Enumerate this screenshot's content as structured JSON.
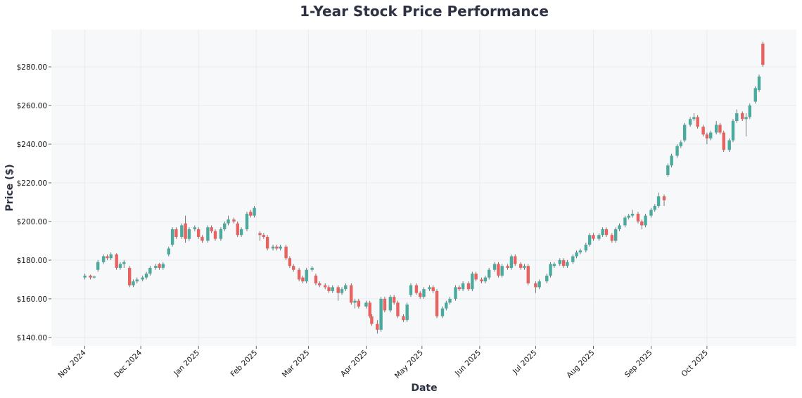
{
  "chart_data": {
    "type": "candlestick",
    "title": "1-Year Stock Price Performance",
    "xlabel": "Date",
    "ylabel": "Price ($)",
    "ylim": [
      135.6,
      299.3
    ],
    "xlim": [
      "2024-10-14",
      "2025-11-18"
    ],
    "grid": true,
    "colors": {
      "up": "#4aaa9e",
      "down": "#e8625f",
      "plot_bg": "#f7f8fa",
      "grid": "#e6e8ec",
      "title": "#2d3142"
    },
    "y_ticks": [
      140,
      160,
      180,
      200,
      220,
      240,
      260,
      280
    ],
    "y_tick_labels": [
      "$140.00",
      "$160.00",
      "$180.00",
      "$200.00",
      "$220.00",
      "$240.00",
      "$260.00",
      "$280.00"
    ],
    "x_ticks": [
      "2024-11-01",
      "2024-12-01",
      "2025-01-01",
      "2025-02-01",
      "2025-03-01",
      "2025-04-01",
      "2025-05-01",
      "2025-06-01",
      "2025-07-01",
      "2025-08-01",
      "2025-09-01",
      "2025-10-01"
    ],
    "x_tick_labels": [
      "Nov 2024",
      "Dec 2024",
      "Jan 2025",
      "Feb 2025",
      "Mar 2025",
      "Apr 2025",
      "May 2025",
      "Jun 2025",
      "Jul 2025",
      "Aug 2025",
      "Sep 2025",
      "Oct 2025"
    ],
    "ohlc_columns": [
      "date",
      "open",
      "high",
      "low",
      "close"
    ],
    "ohlc": [
      [
        "2024-11-01",
        171,
        173,
        170,
        172
      ],
      [
        "2024-11-04",
        172,
        172.5,
        170,
        171
      ],
      [
        "2024-11-06",
        171,
        172,
        170.5,
        171.5
      ],
      [
        "2024-11-08",
        175,
        180,
        174,
        179
      ],
      [
        "2024-11-11",
        179,
        183,
        178,
        182
      ],
      [
        "2024-11-13",
        182,
        183,
        180,
        181
      ],
      [
        "2024-11-15",
        181,
        184,
        180,
        183
      ],
      [
        "2024-11-18",
        183,
        183.5,
        175,
        176
      ],
      [
        "2024-11-20",
        176,
        179,
        175,
        178
      ],
      [
        "2024-11-22",
        178,
        180,
        176,
        179
      ],
      [
        "2024-11-25",
        176,
        177,
        166,
        167
      ],
      [
        "2024-11-27",
        167,
        170,
        166,
        169
      ],
      [
        "2024-11-29",
        169,
        171,
        168,
        170
      ],
      [
        "2024-12-02",
        170,
        172,
        169,
        171
      ],
      [
        "2024-12-04",
        171,
        174,
        170,
        173
      ],
      [
        "2024-12-06",
        173,
        177,
        172,
        176
      ],
      [
        "2024-12-09",
        176,
        178,
        175,
        177
      ],
      [
        "2024-12-11",
        178,
        178.5,
        175,
        176
      ],
      [
        "2024-12-13",
        176,
        179,
        175,
        178
      ],
      [
        "2024-12-16",
        183,
        187,
        182,
        186
      ],
      [
        "2024-12-18",
        188,
        197,
        187,
        196
      ],
      [
        "2024-12-20",
        196,
        197,
        191,
        192
      ],
      [
        "2024-12-23",
        192,
        199,
        191,
        198
      ],
      [
        "2024-12-25",
        199,
        203,
        189,
        191
      ],
      [
        "2024-12-27",
        191,
        197,
        190,
        196
      ],
      [
        "2024-12-30",
        196,
        198,
        195,
        197
      ],
      [
        "2025-01-01",
        196,
        197,
        191,
        192
      ],
      [
        "2025-01-03",
        192,
        193,
        189,
        190
      ],
      [
        "2025-01-06",
        190,
        198,
        189,
        197
      ],
      [
        "2025-01-08",
        197,
        198,
        194,
        195
      ],
      [
        "2025-01-10",
        195,
        196,
        190,
        191
      ],
      [
        "2025-01-13",
        191,
        197,
        190,
        196
      ],
      [
        "2025-01-15",
        196,
        200,
        195,
        199
      ],
      [
        "2025-01-17",
        199,
        203,
        198,
        201
      ],
      [
        "2025-01-20",
        201,
        202,
        199,
        200
      ],
      [
        "2025-01-22",
        199,
        200,
        192,
        193
      ],
      [
        "2025-01-24",
        193,
        197,
        192,
        196
      ],
      [
        "2025-01-27",
        196,
        205,
        195,
        204
      ],
      [
        "2025-01-29",
        205,
        206,
        202,
        203
      ],
      [
        "2025-01-31",
        203,
        208,
        202,
        207
      ],
      [
        "2025-02-03",
        194,
        195,
        190,
        193
      ],
      [
        "2025-02-05",
        193,
        194,
        191,
        192
      ],
      [
        "2025-02-07",
        192,
        193,
        185,
        186
      ],
      [
        "2025-02-10",
        186,
        188,
        185,
        187
      ],
      [
        "2025-02-12",
        187,
        188,
        185,
        186
      ],
      [
        "2025-02-14",
        186,
        188,
        185,
        187
      ],
      [
        "2025-02-17",
        187,
        188,
        180,
        181
      ],
      [
        "2025-02-19",
        181,
        182,
        176,
        177
      ],
      [
        "2025-02-21",
        177,
        178,
        174,
        175
      ],
      [
        "2025-02-24",
        175,
        176,
        169,
        170
      ],
      [
        "2025-02-26",
        171,
        172,
        168,
        169
      ],
      [
        "2025-02-28",
        169,
        176,
        168,
        175
      ],
      [
        "2025-03-03",
        175,
        177,
        174,
        176
      ],
      [
        "2025-03-05",
        172,
        173,
        167,
        168
      ],
      [
        "2025-03-07",
        168,
        169,
        166,
        167
      ],
      [
        "2025-03-10",
        167,
        168,
        165,
        166
      ],
      [
        "2025-03-12",
        166,
        167,
        163,
        164
      ],
      [
        "2025-03-14",
        164,
        167,
        163,
        166
      ],
      [
        "2025-03-17",
        166,
        167,
        159,
        163
      ],
      [
        "2025-03-19",
        163,
        166,
        162,
        165
      ],
      [
        "2025-03-21",
        165,
        168,
        164,
        167
      ],
      [
        "2025-03-24",
        167,
        168,
        157,
        158
      ],
      [
        "2025-03-26",
        158,
        160,
        155,
        159
      ],
      [
        "2025-03-28",
        159,
        160,
        155,
        156
      ],
      [
        "2025-04-01",
        156,
        159,
        155,
        158
      ],
      [
        "2025-04-03",
        158,
        159,
        150,
        151
      ],
      [
        "2025-04-04",
        151,
        152,
        146,
        147
      ],
      [
        "2025-04-07",
        147,
        149,
        142,
        144
      ],
      [
        "2025-04-09",
        144,
        161,
        143,
        160
      ],
      [
        "2025-04-11",
        160,
        161,
        153,
        154
      ],
      [
        "2025-04-14",
        154,
        162,
        153,
        161
      ],
      [
        "2025-04-16",
        161,
        162,
        157,
        158
      ],
      [
        "2025-04-18",
        158,
        159,
        150,
        151
      ],
      [
        "2025-04-21",
        151,
        152,
        148,
        149
      ],
      [
        "2025-04-23",
        149,
        158,
        148,
        157
      ],
      [
        "2025-04-25",
        162,
        168,
        161,
        167
      ],
      [
        "2025-04-28",
        167,
        168,
        162,
        163
      ],
      [
        "2025-04-30",
        163,
        164,
        160,
        161
      ],
      [
        "2025-05-02",
        161,
        166,
        160,
        165
      ],
      [
        "2025-05-05",
        165,
        167,
        164,
        166
      ],
      [
        "2025-05-07",
        166,
        167,
        163,
        164
      ],
      [
        "2025-05-09",
        164,
        165,
        150,
        151
      ],
      [
        "2025-05-12",
        151,
        156,
        150,
        155
      ],
      [
        "2025-05-14",
        155,
        159,
        154,
        158
      ],
      [
        "2025-05-16",
        158,
        161,
        157,
        160
      ],
      [
        "2025-05-19",
        160,
        167,
        159,
        166
      ],
      [
        "2025-05-21",
        166,
        167,
        164,
        165
      ],
      [
        "2025-05-23",
        165,
        169,
        164,
        168
      ],
      [
        "2025-05-26",
        168,
        169,
        164,
        165
      ],
      [
        "2025-05-28",
        165,
        174,
        164,
        173
      ],
      [
        "2025-05-30",
        173,
        174,
        169,
        170
      ],
      [
        "2025-06-02",
        170,
        171,
        168,
        169
      ],
      [
        "2025-06-04",
        169,
        172,
        168,
        171
      ],
      [
        "2025-06-06",
        171,
        176,
        170,
        175
      ],
      [
        "2025-06-09",
        175,
        179,
        174,
        178
      ],
      [
        "2025-06-11",
        178,
        179,
        171,
        172
      ],
      [
        "2025-06-13",
        172,
        178,
        171,
        177
      ],
      [
        "2025-06-16",
        177,
        178,
        175,
        176
      ],
      [
        "2025-06-18",
        176,
        183,
        175,
        182
      ],
      [
        "2025-06-20",
        182,
        183,
        177,
        178
      ],
      [
        "2025-06-23",
        178,
        179,
        175,
        176
      ],
      [
        "2025-06-25",
        176,
        178,
        175,
        177
      ],
      [
        "2025-06-27",
        177,
        178,
        167,
        168
      ],
      [
        "2025-07-01",
        168,
        169,
        163,
        166
      ],
      [
        "2025-07-03",
        166,
        170,
        165,
        169
      ],
      [
        "2025-07-07",
        169,
        173,
        168,
        172
      ],
      [
        "2025-07-09",
        172,
        179,
        171,
        178
      ],
      [
        "2025-07-11",
        177,
        179,
        176,
        178
      ],
      [
        "2025-07-14",
        178,
        181,
        177,
        180
      ],
      [
        "2025-07-16",
        180,
        181,
        176,
        177
      ],
      [
        "2025-07-18",
        177,
        180,
        176,
        179
      ],
      [
        "2025-07-21",
        179,
        183,
        178,
        182
      ],
      [
        "2025-07-23",
        182,
        185,
        181,
        184
      ],
      [
        "2025-07-25",
        184,
        186,
        183,
        185
      ],
      [
        "2025-07-28",
        185,
        189,
        184,
        188
      ],
      [
        "2025-07-30",
        188,
        194,
        187,
        193
      ],
      [
        "2025-08-01",
        193,
        194,
        190,
        191
      ],
      [
        "2025-08-04",
        191,
        194,
        190,
        193
      ],
      [
        "2025-08-06",
        193,
        197,
        192,
        196
      ],
      [
        "2025-08-08",
        196,
        197,
        192,
        193
      ],
      [
        "2025-08-11",
        193,
        194,
        189,
        190
      ],
      [
        "2025-08-13",
        190,
        197,
        189,
        196
      ],
      [
        "2025-08-15",
        196,
        199,
        195,
        198
      ],
      [
        "2025-08-18",
        198,
        203,
        197,
        202
      ],
      [
        "2025-08-20",
        202,
        204,
        201,
        203
      ],
      [
        "2025-08-22",
        203,
        206,
        202,
        204
      ],
      [
        "2025-08-25",
        204,
        205,
        199,
        200
      ],
      [
        "2025-08-27",
        200,
        201,
        196,
        198
      ],
      [
        "2025-08-29",
        198,
        204,
        197,
        203
      ],
      [
        "2025-09-01",
        203,
        207,
        202,
        206
      ],
      [
        "2025-09-03",
        206,
        209,
        205,
        208
      ],
      [
        "2025-09-05",
        208,
        215,
        207,
        213
      ],
      [
        "2025-09-08",
        213,
        214,
        208,
        211
      ],
      [
        "2025-09-10",
        224,
        230,
        223,
        229
      ],
      [
        "2025-09-12",
        229,
        235,
        228,
        234
      ],
      [
        "2025-09-15",
        234,
        240,
        233,
        239
      ],
      [
        "2025-09-17",
        239,
        242,
        238,
        241
      ],
      [
        "2025-09-19",
        242,
        251,
        241,
        250
      ],
      [
        "2025-09-22",
        250,
        254,
        249,
        253
      ],
      [
        "2025-09-24",
        253,
        256,
        252,
        254
      ],
      [
        "2025-09-26",
        254,
        255,
        248,
        249
      ],
      [
        "2025-09-29",
        249,
        250,
        244,
        245
      ],
      [
        "2025-10-01",
        245,
        246,
        240,
        243
      ],
      [
        "2025-10-03",
        243,
        247,
        242,
        246
      ],
      [
        "2025-10-06",
        246,
        252,
        245,
        250
      ],
      [
        "2025-10-08",
        250,
        251,
        245,
        246
      ],
      [
        "2025-10-10",
        246,
        247,
        236,
        237
      ],
      [
        "2025-10-13",
        237,
        243,
        236,
        242
      ],
      [
        "2025-10-15",
        242,
        253,
        241,
        252
      ],
      [
        "2025-10-17",
        252,
        258,
        251,
        256
      ],
      [
        "2025-10-20",
        256,
        257,
        252,
        253
      ],
      [
        "2025-10-22",
        253,
        256,
        244,
        254
      ],
      [
        "2025-10-24",
        254,
        261,
        253,
        260
      ],
      [
        "2025-10-27",
        262,
        270,
        261,
        269
      ],
      [
        "2025-10-29",
        268,
        276,
        267,
        275
      ],
      [
        "2025-10-31",
        292,
        293,
        280,
        281
      ]
    ]
  }
}
